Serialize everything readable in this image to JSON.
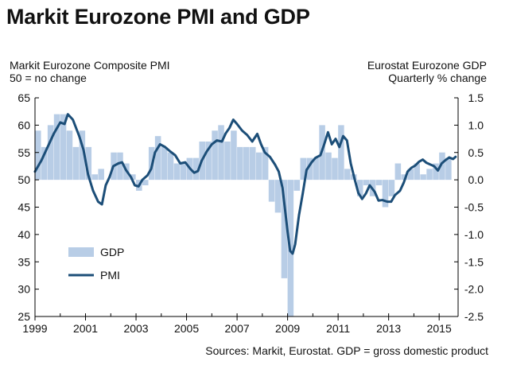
{
  "title": "Markit Eurozone PMI and GDP",
  "source": "Sources: Markit, Eurostat. GDP = gross domestic product",
  "colors": {
    "gdp": "#b8cde6",
    "pmi": "#1c4e78",
    "axis": "#000000"
  },
  "chart_data": {
    "type": "bar+line",
    "title": "Markit Eurozone PMI and GDP",
    "left_axis": {
      "label_line1": "Markit Eurozone Composite PMI",
      "label_line2": "50 = no change",
      "ylim": [
        25,
        65
      ],
      "ticks": [
        25,
        30,
        35,
        40,
        45,
        50,
        55,
        60,
        65
      ]
    },
    "right_axis": {
      "label_line1": "Eurostat Eurozone GDP",
      "label_line2": "Quarterly % change",
      "ylim": [
        -2.5,
        1.5
      ],
      "ticks": [
        -2.5,
        -2.0,
        -1.5,
        -1.0,
        -0.5,
        0.0,
        0.5,
        1.0,
        1.5
      ],
      "tick_labels": [
        "-2.5",
        "-2.0",
        "-1.5",
        "-1.0",
        "-0.5",
        "0.0",
        "0.5",
        "1.0",
        "1.5"
      ]
    },
    "x_axis": {
      "range": [
        1999.0,
        2015.75
      ],
      "ticks": [
        1999,
        2001,
        2003,
        2005,
        2007,
        2009,
        2011,
        2013,
        2015
      ],
      "tick_labels": [
        "1999",
        "2001",
        "2003",
        "2005",
        "2007",
        "2009",
        "2011",
        "2013",
        "2015"
      ]
    },
    "legend": {
      "position": "bottom-left",
      "gdp_label": "GDP",
      "pmi_label": "PMI"
    },
    "series": [
      {
        "name": "GDP",
        "type": "bar",
        "axis": "right",
        "quarters": [
          "1999Q1",
          "1999Q2",
          "1999Q3",
          "1999Q4",
          "2000Q1",
          "2000Q2",
          "2000Q3",
          "2000Q4",
          "2001Q1",
          "2001Q2",
          "2001Q3",
          "2001Q4",
          "2002Q1",
          "2002Q2",
          "2002Q3",
          "2002Q4",
          "2003Q1",
          "2003Q2",
          "2003Q3",
          "2003Q4",
          "2004Q1",
          "2004Q2",
          "2004Q3",
          "2004Q4",
          "2005Q1",
          "2005Q2",
          "2005Q3",
          "2005Q4",
          "2006Q1",
          "2006Q2",
          "2006Q3",
          "2006Q4",
          "2007Q1",
          "2007Q2",
          "2007Q3",
          "2007Q4",
          "2008Q1",
          "2008Q2",
          "2008Q3",
          "2008Q4",
          "2009Q1",
          "2009Q2",
          "2009Q3",
          "2009Q4",
          "2010Q1",
          "2010Q2",
          "2010Q3",
          "2010Q4",
          "2011Q1",
          "2011Q2",
          "2011Q3",
          "2011Q4",
          "2012Q1",
          "2012Q2",
          "2012Q3",
          "2012Q4",
          "2013Q1",
          "2013Q2",
          "2013Q3",
          "2013Q4",
          "2014Q1",
          "2014Q2",
          "2014Q3",
          "2014Q4",
          "2015Q1",
          "2015Q2"
        ],
        "values": [
          0.9,
          0.6,
          1.0,
          1.2,
          1.2,
          0.9,
          0.6,
          0.9,
          0.6,
          0.1,
          0.2,
          0.0,
          0.5,
          0.5,
          0.3,
          0.1,
          -0.2,
          -0.1,
          0.6,
          0.8,
          0.6,
          0.5,
          0.3,
          0.3,
          0.4,
          0.4,
          0.7,
          0.7,
          0.9,
          1.0,
          0.7,
          0.9,
          0.6,
          0.6,
          0.6,
          0.5,
          0.6,
          -0.4,
          -0.6,
          -1.8,
          -2.5,
          -0.2,
          0.4,
          0.4,
          0.4,
          1.0,
          0.5,
          0.4,
          1.0,
          0.2,
          0.1,
          -0.3,
          -0.1,
          -0.3,
          -0.1,
          -0.5,
          -0.3,
          0.3,
          0.1,
          0.2,
          0.3,
          0.1,
          0.2,
          0.3,
          0.5,
          0.4
        ]
      },
      {
        "name": "PMI",
        "type": "line",
        "axis": "left",
        "x": [
          1999.0,
          1999.25,
          1999.5,
          1999.75,
          2000.0,
          2000.17,
          2000.3,
          2000.5,
          2000.75,
          2000.92,
          2001.1,
          2001.3,
          2001.5,
          2001.65,
          2001.8,
          2001.95,
          2002.1,
          2002.3,
          2002.45,
          2002.6,
          2002.8,
          2002.95,
          2003.1,
          2003.25,
          2003.45,
          2003.6,
          2003.75,
          2003.95,
          2004.15,
          2004.35,
          2004.55,
          2004.75,
          2004.95,
          2005.15,
          2005.3,
          2005.45,
          2005.6,
          2005.8,
          2006.0,
          2006.2,
          2006.4,
          2006.55,
          2006.7,
          2006.85,
          2007.0,
          2007.2,
          2007.4,
          2007.6,
          2007.8,
          2007.95,
          2008.1,
          2008.3,
          2008.5,
          2008.65,
          2008.8,
          2008.9,
          2009.0,
          2009.1,
          2009.2,
          2009.3,
          2009.45,
          2009.6,
          2009.75,
          2009.95,
          2010.1,
          2010.3,
          2010.45,
          2010.6,
          2010.75,
          2010.9,
          2011.05,
          2011.2,
          2011.35,
          2011.5,
          2011.65,
          2011.8,
          2011.95,
          2012.1,
          2012.25,
          2012.45,
          2012.6,
          2012.75,
          2012.95,
          2013.1,
          2013.25,
          2013.45,
          2013.6,
          2013.75,
          2013.9,
          2014.05,
          2014.2,
          2014.35,
          2014.5,
          2014.65,
          2014.8,
          2014.95,
          2015.1,
          2015.25,
          2015.4,
          2015.55,
          2015.65
        ],
        "values": [
          51.5,
          53.5,
          56,
          58.5,
          60.5,
          60.2,
          62,
          61,
          58,
          55.5,
          51,
          48,
          46,
          45.5,
          49,
          50.5,
          52.5,
          53,
          53.2,
          51.8,
          50.5,
          49,
          48.8,
          50,
          50.8,
          52,
          55,
          56.5,
          56,
          55.2,
          54.5,
          53,
          53.2,
          52,
          51.3,
          51.6,
          53.5,
          55.2,
          56.5,
          57.2,
          57,
          58.5,
          59.5,
          61,
          60.2,
          59,
          58.2,
          57,
          58.4,
          56.5,
          55,
          54.2,
          52.8,
          51.5,
          48.5,
          44.5,
          40.5,
          37,
          36.5,
          38.2,
          43.5,
          47.5,
          51.8,
          53.2,
          54,
          54.5,
          56.5,
          58.7,
          56.5,
          57.5,
          56,
          58,
          57.2,
          53,
          50.2,
          47.6,
          46.5,
          47.5,
          49,
          47.8,
          46.2,
          46.3,
          46,
          46,
          47.2,
          48,
          49.5,
          51.5,
          52.2,
          52.6,
          53.3,
          53.7,
          53.1,
          52.8,
          52.5,
          51.7,
          53,
          53.6,
          54.1,
          53.8,
          54.2
        ]
      }
    ]
  }
}
